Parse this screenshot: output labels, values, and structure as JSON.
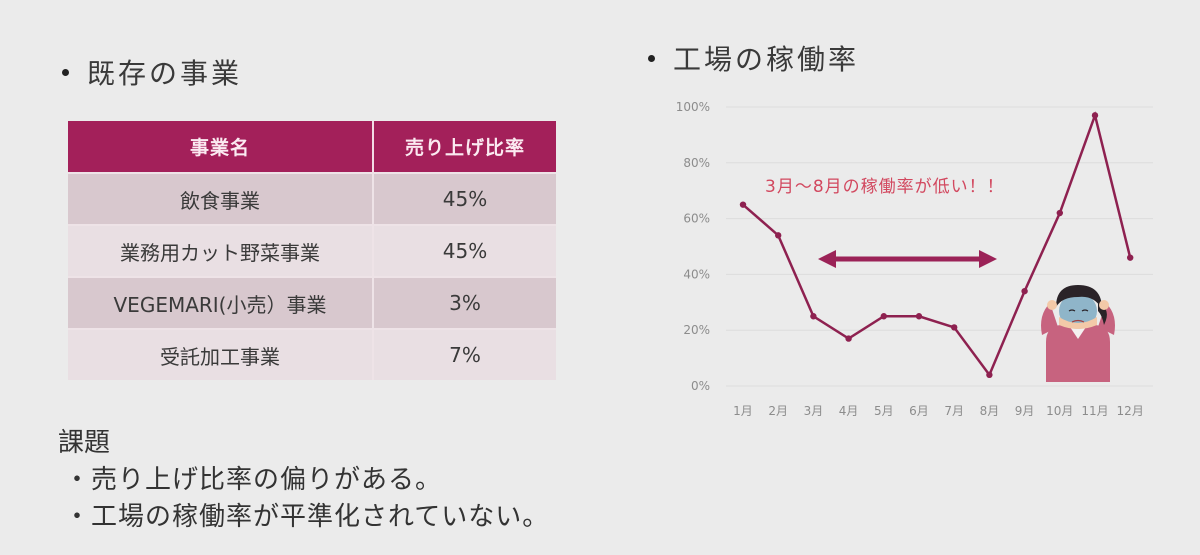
{
  "left_section": {
    "heading": "既存の事業",
    "table": {
      "headers": [
        "事業名",
        "売り上げ比率"
      ],
      "rows": [
        {
          "name": "飲食事業",
          "ratio": "45%"
        },
        {
          "name": "業務用カット野菜事業",
          "ratio": "45%"
        },
        {
          "name": "VEGEMARI(小売）事業",
          "ratio": "3%"
        },
        {
          "name": "受託加工事業",
          "ratio": "7%"
        }
      ]
    }
  },
  "issues": {
    "title": "課題",
    "items": [
      "・売り上げ比率の偏りがある。",
      "・工場の稼働率が平準化されていない。"
    ]
  },
  "right_section": {
    "heading": "工場の稼働率",
    "annotation": "3月～8月の稼働率が低い！！",
    "illustration": "distressed-woman-holding-head"
  },
  "colors": {
    "background": "#ebebeb",
    "table_header": "#a3205a",
    "row_dark": "#d8c8ce",
    "row_light": "#e9dfe3",
    "line": "#8e2150",
    "annotation": "#d2485f",
    "arrow": "#9b2257"
  },
  "chart_data": {
    "type": "line",
    "title": "工場の稼働率",
    "categories": [
      "1月",
      "2月",
      "3月",
      "4月",
      "5月",
      "6月",
      "7月",
      "8月",
      "9月",
      "10月",
      "11月",
      "12月"
    ],
    "series": [
      {
        "name": "稼働率",
        "values": [
          65,
          54,
          25,
          17,
          25,
          25,
          21,
          4,
          34,
          62,
          97,
          46
        ]
      }
    ],
    "yticks": [
      "0%",
      "20%",
      "40%",
      "60%",
      "80%",
      "100%"
    ],
    "ylim": [
      0,
      100
    ],
    "xlabel": "",
    "ylabel": "",
    "grid": true,
    "legend": "none",
    "annotations": [
      {
        "text": "3月～8月の稼働率が低い！！",
        "type": "text"
      },
      {
        "type": "double-arrow",
        "from": "3月",
        "to": "8月"
      }
    ]
  }
}
